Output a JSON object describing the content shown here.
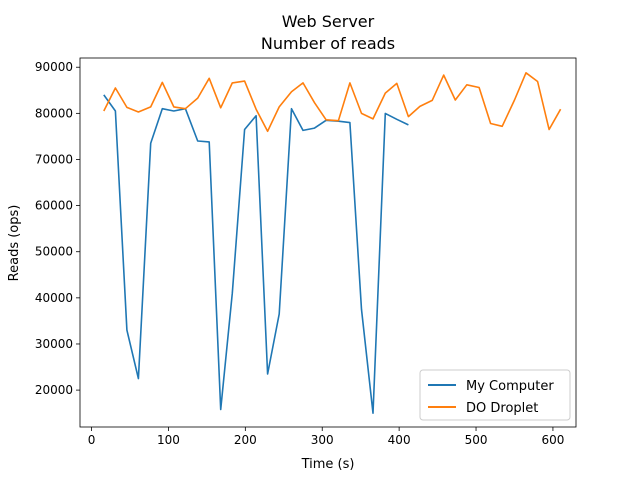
{
  "chart_data": {
    "type": "line",
    "title": "Web Server",
    "subtitle": "Number of reads",
    "xlabel": "Time (s)",
    "ylabel": "Reads (ops)",
    "xlim": [
      -15,
      630
    ],
    "ylim": [
      12000,
      92000
    ],
    "xticks": [
      0,
      100,
      200,
      300,
      400,
      500,
      600
    ],
    "yticks": [
      20000,
      30000,
      40000,
      50000,
      60000,
      70000,
      80000,
      90000
    ],
    "grid": false,
    "legend_position": "lower-right",
    "series": [
      {
        "name": "My Computer",
        "color": "#1f77b4",
        "x": [
          16,
          31,
          46,
          61,
          77,
          92,
          107,
          122,
          138,
          153,
          168,
          183,
          199,
          214,
          229,
          244,
          260,
          275,
          290,
          305,
          321,
          336,
          351,
          366,
          382,
          397,
          412
        ],
        "y": [
          84000,
          80500,
          33000,
          22500,
          73500,
          81000,
          80500,
          81000,
          74000,
          73800,
          15800,
          41000,
          76500,
          79500,
          23500,
          36500,
          81000,
          76300,
          76800,
          78500,
          78300,
          78000,
          37500,
          15000,
          80000,
          78700,
          77500
        ]
      },
      {
        "name": "DO Droplet",
        "color": "#ff7f0e",
        "x": [
          16,
          31,
          46,
          61,
          77,
          92,
          107,
          122,
          138,
          153,
          168,
          183,
          199,
          214,
          229,
          244,
          260,
          275,
          290,
          305,
          321,
          336,
          351,
          366,
          382,
          397,
          412,
          427,
          443,
          458,
          473,
          488,
          504,
          519,
          534,
          550,
          565,
          580,
          595,
          610
        ],
        "y": [
          80500,
          85500,
          81300,
          80300,
          81400,
          86700,
          81400,
          81000,
          83300,
          87600,
          81200,
          86600,
          87000,
          80900,
          76100,
          81400,
          84700,
          86600,
          82300,
          78600,
          78400,
          86600,
          80000,
          78800,
          84400,
          86500,
          79300,
          81500,
          82800,
          88300,
          82900,
          86200,
          85600,
          77800,
          77200,
          82900,
          88800,
          86900,
          76500,
          80900
        ]
      }
    ]
  }
}
